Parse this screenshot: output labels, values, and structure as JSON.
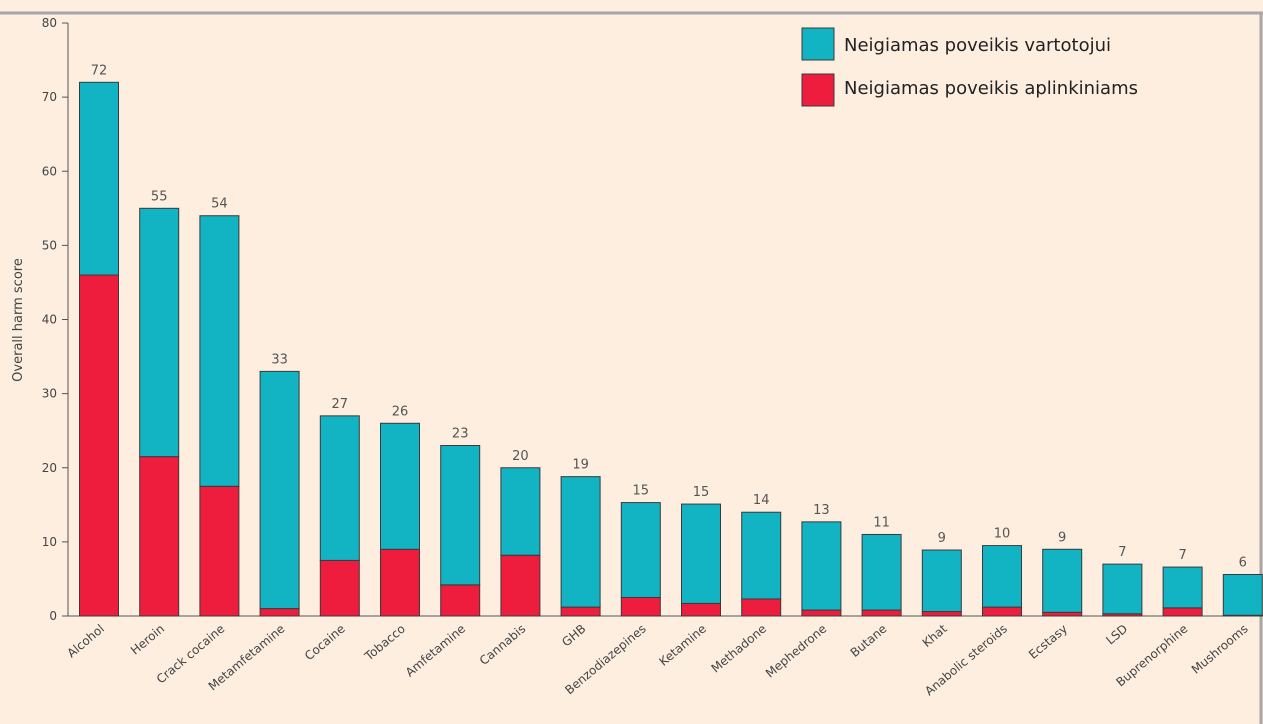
{
  "chart_data": {
    "type": "bar",
    "stacked": true,
    "title": "",
    "xlabel": "",
    "ylabel": "Overall harm score",
    "ylim": [
      0,
      80
    ],
    "yticks": [
      0,
      10,
      20,
      30,
      40,
      50,
      60,
      70,
      80
    ],
    "grid": false,
    "legend_position": "top-right",
    "categories": [
      "Alcohol",
      "Heroin",
      "Crack cocaine",
      "Metamfetamine",
      "Cocaine",
      "Tobacco",
      "Amfetamine",
      "Cannabis",
      "GHB",
      "Benzodiazepines",
      "Ketamine",
      "Methadone",
      "Mephedrone",
      "Butane",
      "Khat",
      "Anabolic steroids",
      "Ecstasy",
      "LSD",
      "Buprenorphine",
      "Mushrooms"
    ],
    "totals": [
      "72",
      "55",
      "54",
      "33",
      "27",
      "26",
      "23",
      "20",
      "19",
      "15",
      "15",
      "14",
      "13",
      "11",
      "9",
      "10",
      "9",
      "7",
      "7",
      "6"
    ],
    "series": [
      {
        "name": "Neigiamas poveikis aplinkiniams",
        "color": "#ee1c3d",
        "values": [
          46,
          21.5,
          17.5,
          1,
          7.5,
          9,
          4.2,
          8.2,
          1.2,
          2.5,
          1.7,
          2.3,
          0.8,
          0.8,
          0.6,
          1.2,
          0.5,
          0.3,
          1.1,
          0.1
        ]
      },
      {
        "name": "Neigiamas poveikis vartotojui",
        "color": "#12b4c3",
        "values": [
          26,
          33.5,
          36.5,
          32,
          19.5,
          17,
          18.8,
          11.8,
          17.6,
          12.8,
          13.4,
          11.7,
          11.9,
          10.2,
          8.3,
          8.3,
          8.5,
          6.7,
          5.5,
          5.5
        ]
      }
    ]
  },
  "legend": {
    "items": [
      {
        "label": "Neigiamas poveikis vartotojui",
        "color": "#12b4c3"
      },
      {
        "label": "Neigiamas poveikis aplinkiniams",
        "color": "#ee1c3d"
      }
    ]
  }
}
